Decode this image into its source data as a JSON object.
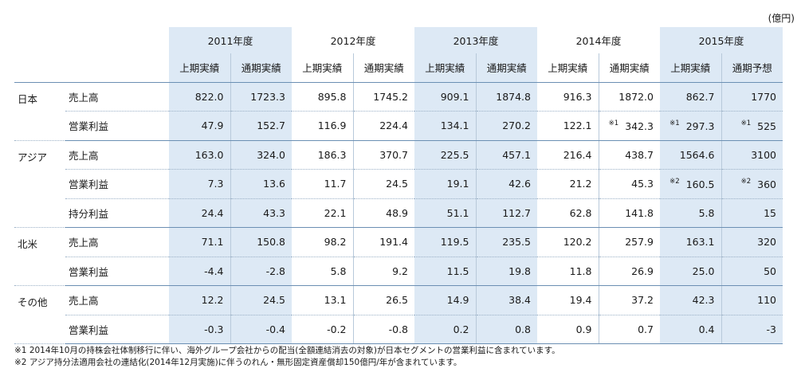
{
  "unit": "(億円)",
  "years": [
    "2011年度",
    "2012年度",
    "2013年度",
    "2014年度",
    "2015年度"
  ],
  "sub": [
    "上期実績",
    "通期実績",
    "上期実績",
    "通期実績",
    "上期実績",
    "通期実績",
    "上期実績",
    "通期実績",
    "上期実績",
    "通期予想"
  ],
  "regions": [
    {
      "name": "日本",
      "rows": [
        {
          "label": "売上高",
          "v": [
            {
              "t": "822.0"
            },
            {
              "t": "1723.3"
            },
            {
              "t": "895.8"
            },
            {
              "t": "1745.2"
            },
            {
              "t": "909.1"
            },
            {
              "t": "1874.8"
            },
            {
              "t": "916.3"
            },
            {
              "t": "1872.0"
            },
            {
              "t": "862.7"
            },
            {
              "t": "1770"
            }
          ]
        },
        {
          "label": "営業利益",
          "v": [
            {
              "t": "47.9"
            },
            {
              "t": "152.7"
            },
            {
              "t": "116.9"
            },
            {
              "t": "224.4"
            },
            {
              "t": "134.1"
            },
            {
              "t": "270.2"
            },
            {
              "t": "122.1"
            },
            {
              "t": "342.3",
              "n": "※1"
            },
            {
              "t": "297.3",
              "n": "※1"
            },
            {
              "t": "525",
              "n": "※1"
            }
          ]
        }
      ]
    },
    {
      "name": "アジア",
      "rows": [
        {
          "label": "売上高",
          "v": [
            {
              "t": "163.0"
            },
            {
              "t": "324.0"
            },
            {
              "t": "186.3"
            },
            {
              "t": "370.7"
            },
            {
              "t": "225.5"
            },
            {
              "t": "457.1"
            },
            {
              "t": "216.4"
            },
            {
              "t": "438.7"
            },
            {
              "t": "1564.6"
            },
            {
              "t": "3100"
            }
          ]
        },
        {
          "label": "営業利益",
          "v": [
            {
              "t": "7.3"
            },
            {
              "t": "13.6"
            },
            {
              "t": "11.7"
            },
            {
              "t": "24.5"
            },
            {
              "t": "19.1"
            },
            {
              "t": "42.6"
            },
            {
              "t": "21.2"
            },
            {
              "t": "45.3"
            },
            {
              "t": "160.5",
              "n": "※2"
            },
            {
              "t": "360",
              "n": "※2"
            }
          ]
        },
        {
          "label": "持分利益",
          "v": [
            {
              "t": "24.4"
            },
            {
              "t": "43.3"
            },
            {
              "t": "22.1"
            },
            {
              "t": "48.9"
            },
            {
              "t": "51.1"
            },
            {
              "t": "112.7"
            },
            {
              "t": "62.8"
            },
            {
              "t": "141.8"
            },
            {
              "t": "5.8"
            },
            {
              "t": "15"
            }
          ]
        }
      ]
    },
    {
      "name": "北米",
      "rows": [
        {
          "label": "売上高",
          "v": [
            {
              "t": "71.1"
            },
            {
              "t": "150.8"
            },
            {
              "t": "98.2"
            },
            {
              "t": "191.4"
            },
            {
              "t": "119.5"
            },
            {
              "t": "235.5"
            },
            {
              "t": "120.2"
            },
            {
              "t": "257.9"
            },
            {
              "t": "163.1"
            },
            {
              "t": "320"
            }
          ]
        },
        {
          "label": "営業利益",
          "v": [
            {
              "t": "-4.4"
            },
            {
              "t": "-2.8"
            },
            {
              "t": "5.8"
            },
            {
              "t": "9.2"
            },
            {
              "t": "11.5"
            },
            {
              "t": "19.8"
            },
            {
              "t": "11.8"
            },
            {
              "t": "26.9"
            },
            {
              "t": "25.0"
            },
            {
              "t": "50"
            }
          ]
        }
      ]
    },
    {
      "name": "その他",
      "rows": [
        {
          "label": "売上高",
          "v": [
            {
              "t": "12.2"
            },
            {
              "t": "24.5"
            },
            {
              "t": "13.1"
            },
            {
              "t": "26.5"
            },
            {
              "t": "14.9"
            },
            {
              "t": "38.4"
            },
            {
              "t": "19.4"
            },
            {
              "t": "37.2"
            },
            {
              "t": "42.3"
            },
            {
              "t": "110"
            }
          ]
        },
        {
          "label": "営業利益",
          "v": [
            {
              "t": "-0.3"
            },
            {
              "t": "-0.4"
            },
            {
              "t": "-0.2"
            },
            {
              "t": "-0.8"
            },
            {
              "t": "0.2"
            },
            {
              "t": "0.8"
            },
            {
              "t": "0.9"
            },
            {
              "t": "0.7"
            },
            {
              "t": "0.4"
            },
            {
              "t": "-3"
            }
          ]
        }
      ]
    }
  ],
  "notes": [
    "※1  2014年10月の持株会社体制移行に伴い、海外グループ会社からの配当(全額連結消去の対象)が日本セグメントの営業利益に含まれています。",
    "※2  アジア持分法適用会社の連結化(2014年12月実施)に伴うのれん・無形固定資産償却150億円/年が含まれています。"
  ]
}
